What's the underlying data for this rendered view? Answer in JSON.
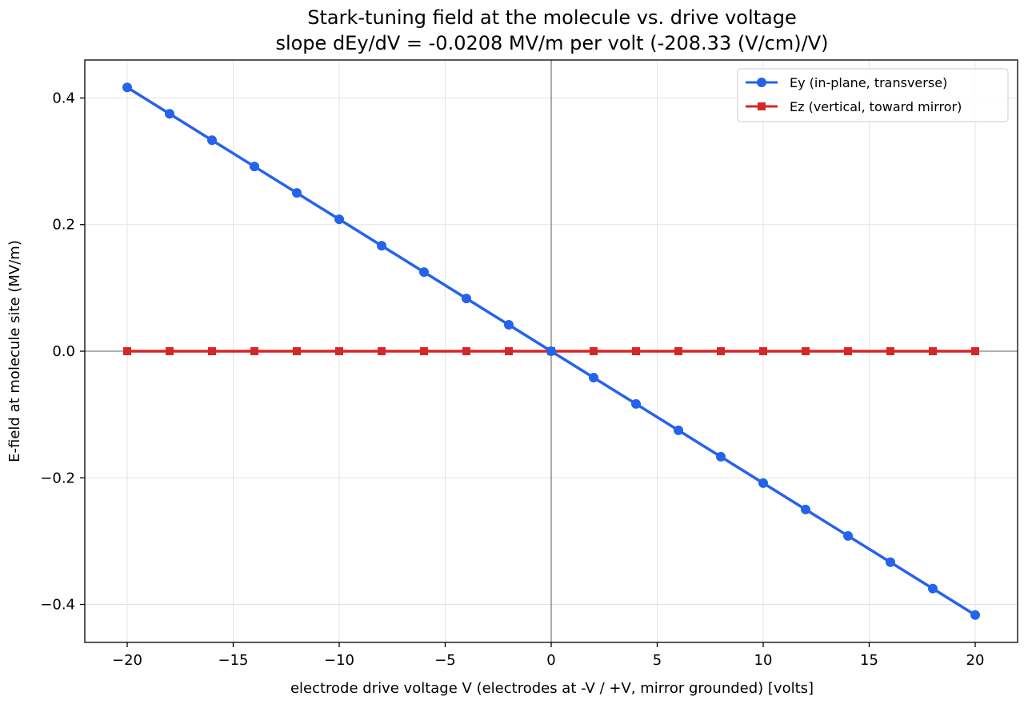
{
  "chart_data": {
    "type": "line",
    "title": "Stark-tuning field at the molecule vs. drive voltage",
    "subtitle": "slope dEy/dV = -0.0208 MV/m per volt (-208.33 (V/cm)/V)",
    "xlabel": "electrode drive voltage V (electrodes at -V / +V, mirror grounded) [volts]",
    "ylabel": "E-field at molecule site (MV/m)",
    "xlim": [
      -22,
      22
    ],
    "ylim": [
      -0.46,
      0.46
    ],
    "x_ticks": [
      -20,
      -15,
      -10,
      -5,
      0,
      5,
      10,
      15,
      20
    ],
    "x_tick_labels": [
      "−20",
      "−15",
      "−10",
      "−5",
      "0",
      "5",
      "10",
      "15",
      "20"
    ],
    "y_ticks": [
      -0.4,
      -0.2,
      0.0,
      0.2,
      0.4
    ],
    "y_tick_labels": [
      "−0.4",
      "−0.2",
      "0.0",
      "0.2",
      "0.4"
    ],
    "grid": true,
    "legend_position": "top-right",
    "x": [
      -20,
      -18,
      -16,
      -14,
      -12,
      -10,
      -8,
      -6,
      -4,
      -2,
      0,
      2,
      4,
      6,
      8,
      10,
      12,
      14,
      16,
      18,
      20
    ],
    "series": [
      {
        "name": "Ey (in-plane, transverse)",
        "color": "#2563eb",
        "marker": "circle",
        "values": [
          0.4167,
          0.375,
          0.3333,
          0.2917,
          0.25,
          0.2083,
          0.1667,
          0.125,
          0.0833,
          0.0417,
          0.0,
          -0.0417,
          -0.0833,
          -0.125,
          -0.1667,
          -0.2083,
          -0.25,
          -0.2917,
          -0.3333,
          -0.375,
          -0.4167
        ]
      },
      {
        "name": "Ez (vertical, toward mirror)",
        "color": "#d62728",
        "marker": "square",
        "values": [
          0,
          0,
          0,
          0,
          0,
          0,
          0,
          0,
          0,
          0,
          0,
          0,
          0,
          0,
          0,
          0,
          0,
          0,
          0,
          0,
          0
        ]
      }
    ]
  }
}
